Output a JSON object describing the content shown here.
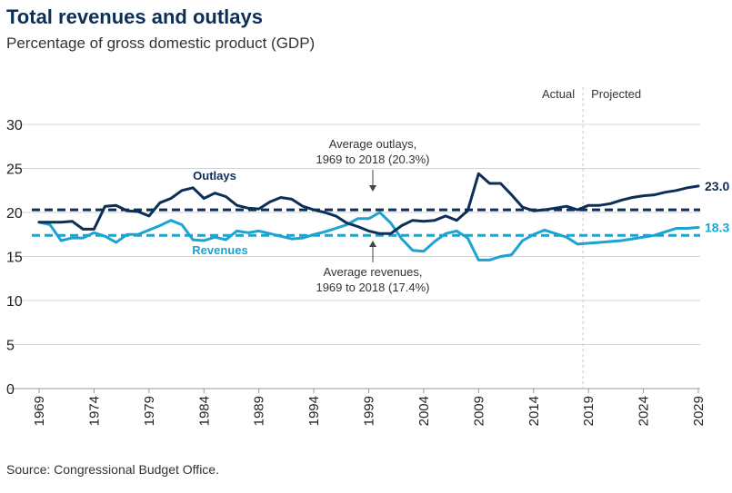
{
  "title": "Total revenues and outlays",
  "subtitle": "Percentage of gross domestic product (GDP)",
  "source": "Source: Congressional Budget Office.",
  "colors": {
    "outlays": "#0c2f57",
    "revenues": "#1ba3d1",
    "grid": "#d4d4d4",
    "divider": "#c8c8c8"
  },
  "chart_data": {
    "type": "line",
    "title": "Total revenues and outlays",
    "ylabel": "Percentage of gross domestic product (GDP)",
    "xlim": [
      1969,
      2029
    ],
    "ylim": [
      0,
      30
    ],
    "yticks": [
      0,
      5,
      10,
      15,
      20,
      25,
      30
    ],
    "xticks": [
      1969,
      1974,
      1979,
      1984,
      1989,
      1994,
      1999,
      2004,
      2009,
      2014,
      2019,
      2024,
      2029
    ],
    "x": [
      1969,
      1970,
      1971,
      1972,
      1973,
      1974,
      1975,
      1976,
      1977,
      1978,
      1979,
      1980,
      1981,
      1982,
      1983,
      1984,
      1985,
      1986,
      1987,
      1988,
      1989,
      1990,
      1991,
      1992,
      1993,
      1994,
      1995,
      1996,
      1997,
      1998,
      1999,
      2000,
      2001,
      2002,
      2003,
      2004,
      2005,
      2006,
      2007,
      2008,
      2009,
      2010,
      2011,
      2012,
      2013,
      2014,
      2015,
      2016,
      2017,
      2018,
      2019,
      2020,
      2021,
      2022,
      2023,
      2024,
      2025,
      2026,
      2027,
      2028,
      2029
    ],
    "series": [
      {
        "name": "Outlays",
        "values": [
          18.9,
          18.9,
          18.9,
          19.0,
          18.1,
          18.1,
          20.7,
          20.8,
          20.2,
          20.1,
          19.6,
          21.1,
          21.6,
          22.5,
          22.8,
          21.6,
          22.2,
          21.8,
          20.8,
          20.5,
          20.4,
          21.2,
          21.7,
          21.5,
          20.7,
          20.3,
          20.0,
          19.6,
          18.8,
          18.4,
          17.9,
          17.6,
          17.6,
          18.5,
          19.1,
          19.0,
          19.1,
          19.6,
          19.1,
          20.2,
          24.4,
          23.3,
          23.3,
          22.0,
          20.6,
          20.2,
          20.3,
          20.5,
          20.7,
          20.3,
          20.8,
          20.8,
          21.0,
          21.4,
          21.7,
          21.9,
          22.0,
          22.3,
          22.5,
          22.8,
          23.0
        ]
      },
      {
        "name": "Revenues",
        "values": [
          18.9,
          18.6,
          16.8,
          17.1,
          17.1,
          17.7,
          17.3,
          16.6,
          17.5,
          17.5,
          18.0,
          18.5,
          19.1,
          18.6,
          16.9,
          16.8,
          17.2,
          16.9,
          17.9,
          17.7,
          17.9,
          17.6,
          17.3,
          17.0,
          17.1,
          17.5,
          17.8,
          18.2,
          18.6,
          19.3,
          19.3,
          20.0,
          18.8,
          17.0,
          15.7,
          15.6,
          16.7,
          17.6,
          17.9,
          17.1,
          14.6,
          14.6,
          15.0,
          15.2,
          16.8,
          17.5,
          18.0,
          17.6,
          17.2,
          16.4,
          16.5,
          16.6,
          16.7,
          16.8,
          17.0,
          17.2,
          17.4,
          17.8,
          18.2,
          18.2,
          18.3
        ]
      }
    ],
    "averages": [
      {
        "name": "Average outlays",
        "value": 20.3
      },
      {
        "name": "Average revenues",
        "value": 17.4
      }
    ],
    "series_labels": {
      "outlays": "Outlays",
      "revenues": "Revenues"
    },
    "end_labels": {
      "outlays": "23.0",
      "revenues": "18.3"
    },
    "annotations": {
      "outlays_avg_line1": "Average outlays,",
      "outlays_avg_line2": "1969 to 2018 (20.3%)",
      "revenues_avg_line1": "Average revenues,",
      "revenues_avg_line2": "1969 to 2018 (17.4%)"
    },
    "divider_year": 2018.5,
    "period_labels": {
      "actual": "Actual",
      "projected": "Projected"
    },
    "grid": true
  }
}
